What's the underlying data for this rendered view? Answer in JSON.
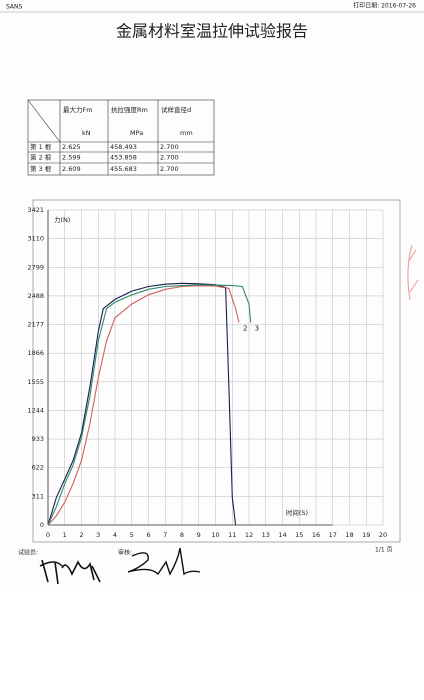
{
  "header": {
    "code": "SANS",
    "print_date": "打印日期: 2016-07-26",
    "title": "金属材料室温拉伸试验报告"
  },
  "table": {
    "columns": [
      "最大力Fm",
      "抗拉强度Rm",
      "试样直径d"
    ],
    "units": [
      "kN",
      "MPa",
      "mm"
    ],
    "rows": [
      [
        "第 1 根",
        "2.625",
        "458.493",
        "2.700"
      ],
      [
        "第 2 根",
        "2.599",
        "453.858",
        "2.700"
      ],
      [
        "第 3 根",
        "2.609",
        "455.683",
        "2.700"
      ]
    ]
  },
  "chart_data": {
    "type": "line",
    "y_label": "力(N)",
    "x_label": "时间(S)",
    "xlim": [
      0,
      20
    ],
    "xticks": [
      0,
      1,
      2,
      3,
      4,
      5,
      6,
      7,
      8,
      9,
      10,
      11,
      12,
      13,
      14,
      15,
      16,
      17,
      18,
      19,
      20
    ],
    "ylim": [
      0,
      3421
    ],
    "yticks": [
      0,
      311,
      622,
      933,
      1244,
      1555,
      1866,
      2177,
      2488,
      2799,
      3110,
      3421
    ],
    "grid": true,
    "series": [
      {
        "color": "#1c1c4e",
        "x": [
          0,
          0.5,
          1,
          1.5,
          2,
          2.5,
          3,
          3.3,
          4,
          5,
          6,
          7,
          8,
          9,
          10,
          10.6,
          10.8,
          11,
          11.2
        ],
        "values": [
          0,
          300,
          500,
          700,
          1000,
          1500,
          2100,
          2350,
          2450,
          2540,
          2590,
          2615,
          2625,
          2620,
          2610,
          2580,
          1500,
          300,
          0
        ]
      },
      {
        "name": "2",
        "color": "#d0605a",
        "x": [
          0,
          0.5,
          1,
          1.5,
          2,
          2.5,
          3,
          3.5,
          4,
          5,
          6,
          7,
          8,
          9,
          10,
          10.8,
          11.2,
          11.4
        ],
        "values": [
          0,
          100,
          250,
          450,
          700,
          1100,
          1600,
          2000,
          2250,
          2400,
          2500,
          2560,
          2590,
          2599,
          2595,
          2570,
          2350,
          2200
        ]
      },
      {
        "name": "3",
        "color": "#2e8b6a",
        "x": [
          0,
          0.5,
          1,
          1.5,
          2,
          2.5,
          3,
          3.5,
          4,
          5,
          6,
          7,
          8,
          9,
          10,
          11,
          11.6,
          12,
          12.1
        ],
        "values": [
          0,
          200,
          450,
          650,
          950,
          1400,
          2000,
          2350,
          2420,
          2500,
          2560,
          2590,
          2600,
          2609,
          2605,
          2600,
          2590,
          2400,
          2200
        ]
      }
    ]
  },
  "footer": {
    "page": "1/1 页",
    "tester": "试验员:",
    "reviewer": "审核:"
  }
}
